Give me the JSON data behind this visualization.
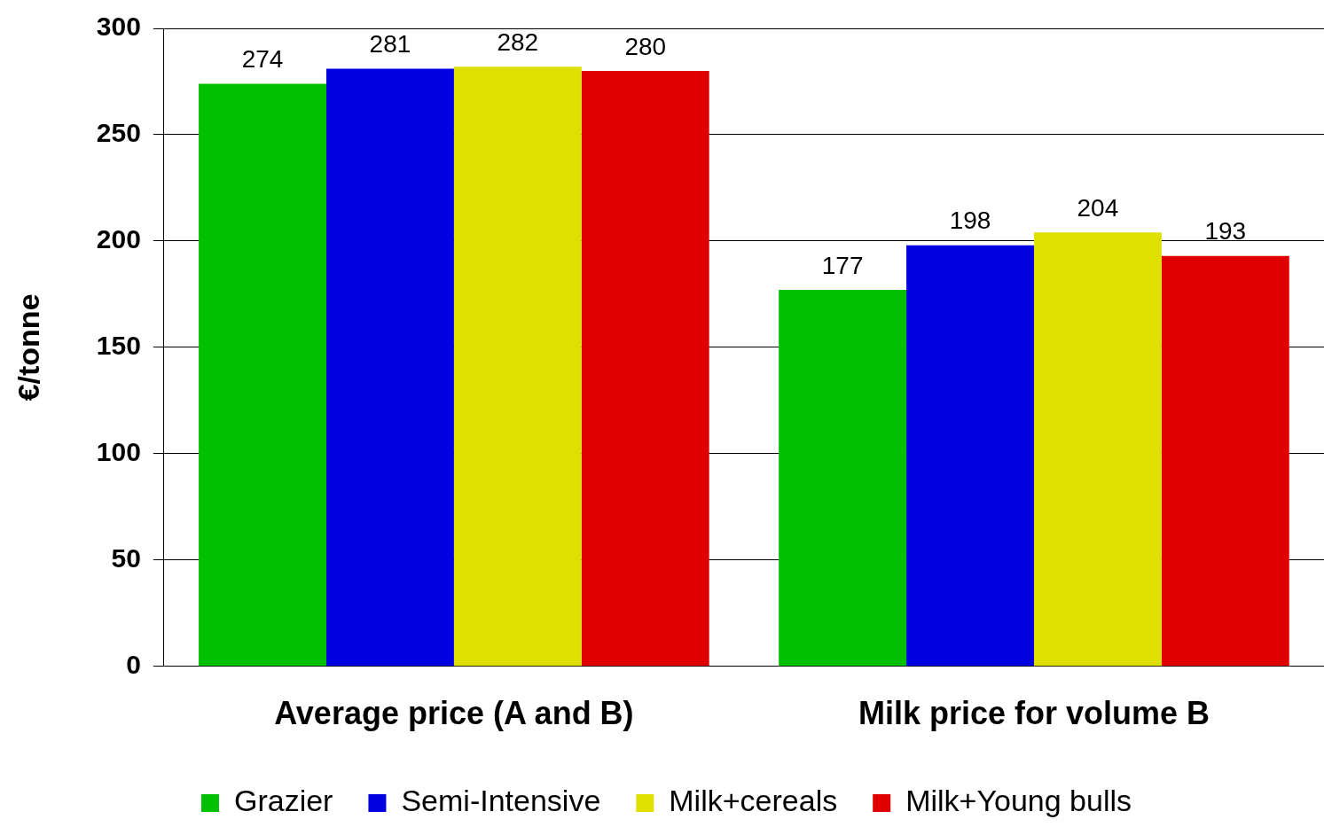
{
  "chart_data": {
    "type": "bar",
    "ylabel": "€/tonne",
    "categories": [
      "Average price (A and B)",
      "Milk price for volume B"
    ],
    "series": [
      {
        "name": "Grazier",
        "color": "#00c000",
        "values": [
          274,
          177
        ]
      },
      {
        "name": "Semi-Intensive",
        "color": "#0000e0",
        "values": [
          281,
          198
        ]
      },
      {
        "name": "Milk+cereals",
        "color": "#e0e000",
        "values": [
          282,
          204
        ]
      },
      {
        "name": "Milk+Young bulls",
        "color": "#e00000",
        "values": [
          280,
          193
        ]
      }
    ],
    "ylim": [
      0,
      300
    ],
    "yticks": [
      0,
      50,
      100,
      150,
      200,
      250,
      300
    ],
    "grid": "y",
    "legend": "bottom",
    "data_labels": true
  }
}
